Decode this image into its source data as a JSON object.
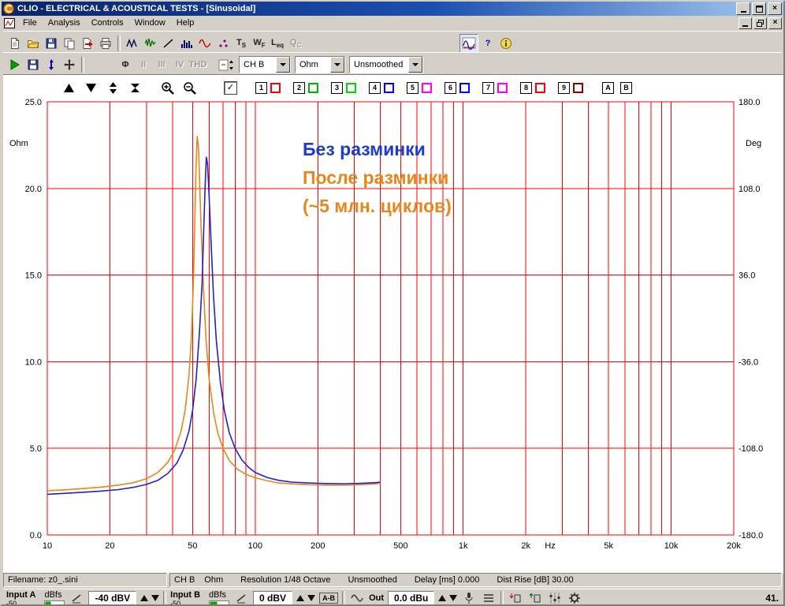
{
  "window": {
    "title": "CLIO - ELECTRICAL & ACOUSTICAL TESTS - [Sinusoidal]"
  },
  "menu": {
    "items": [
      "File",
      "Analysis",
      "Controls",
      "Window",
      "Help"
    ]
  },
  "toolbar_main": {
    "items": [
      {
        "name": "new-doc"
      },
      {
        "name": "open-folder"
      },
      {
        "name": "save"
      },
      {
        "name": "copy"
      },
      {
        "name": "export"
      },
      {
        "name": "print"
      },
      {
        "sep": true
      },
      {
        "name": "mls-signal"
      },
      {
        "name": "noise-signal"
      },
      {
        "name": "sweep-line"
      },
      {
        "name": "fft-bars"
      },
      {
        "name": "sine-wave"
      },
      {
        "name": "scatter"
      },
      {
        "name": "ts-parameters",
        "label": "TS",
        "sub": true
      },
      {
        "name": "waterfall",
        "label": "WF",
        "sub": true
      },
      {
        "name": "leq-analysis",
        "label": "Leq",
        "sub": true
      },
      {
        "name": "qc",
        "label": "QC",
        "sub": true,
        "disabled": true
      },
      {
        "gap": 195
      },
      {
        "name": "sinusoidal",
        "pressed": true
      },
      {
        "name": "help",
        "label": "?",
        "color": "#0000cc"
      },
      {
        "name": "about"
      }
    ]
  },
  "toolbar_tools": {
    "items": [
      {
        "name": "go"
      },
      {
        "name": "save-curve"
      },
      {
        "name": "autoscale"
      },
      {
        "name": "move"
      },
      {
        "sep": true
      },
      {
        "gap": 36
      },
      {
        "name": "phase",
        "label": "Φ"
      },
      {
        "name": "harmonic-2",
        "label": "II",
        "disabled": true
      },
      {
        "name": "harmonic-3",
        "label": "III",
        "disabled": true
      },
      {
        "name": "harmonic-4",
        "label": "IV",
        "disabled": true
      },
      {
        "name": "thd",
        "label": "THD",
        "disabled": true
      },
      {
        "gap": 12
      },
      {
        "name": "y-scale-spin"
      }
    ],
    "combos": [
      {
        "name": "channel",
        "value": "CH B",
        "width": 64
      },
      {
        "name": "unit",
        "value": "Ohm",
        "width": 62
      },
      {
        "name": "smoothing",
        "value": "Unsmoothed",
        "width": 92
      }
    ]
  },
  "chart_controls": {
    "nav_icons": [
      "up-triangle",
      "down-triangle",
      "updown-triangle",
      "hourglass"
    ],
    "zoom_icons": [
      "zoom-in",
      "zoom-out"
    ],
    "checkbox_checked": "✓",
    "curves": [
      {
        "label": "1",
        "color": "#ff0000"
      },
      {
        "label": "2",
        "color": "#00b400"
      },
      {
        "label": "3",
        "color": "#00d800"
      },
      {
        "label": "4",
        "color": "#0000ff"
      },
      {
        "label": "5",
        "color": "#ff00ff"
      },
      {
        "label": "6",
        "color": "#0000ff"
      },
      {
        "label": "7",
        "color": "#ff00ff"
      },
      {
        "label": "8",
        "color": "#ff0000"
      },
      {
        "label": "9",
        "color": "#900000"
      }
    ],
    "overlays": [
      "A",
      "B"
    ]
  },
  "chart_data": {
    "type": "line",
    "x_scale": "log",
    "xlim": [
      10,
      20000
    ],
    "ylim_left": [
      0,
      25
    ],
    "ylim_right": [
      -180,
      180
    ],
    "xlabel": "Hz",
    "ylabel_left": "Ohm",
    "ylabel_right": "Deg",
    "grid": true,
    "grid_color": "#ff0000",
    "x_ticks": [
      {
        "v": 10,
        "l": "10"
      },
      {
        "v": 20,
        "l": "20"
      },
      {
        "v": 50,
        "l": "50"
      },
      {
        "v": 100,
        "l": "100"
      },
      {
        "v": 200,
        "l": "200"
      },
      {
        "v": 500,
        "l": "500"
      },
      {
        "v": 1000,
        "l": "1k"
      },
      {
        "v": 2000,
        "l": "2k"
      },
      {
        "v": 5000,
        "l": "5k"
      },
      {
        "v": 10000,
        "l": "10k"
      },
      {
        "v": 20000,
        "l": "20k"
      }
    ],
    "y_ticks_left": [
      {
        "v": 25,
        "l": "25.0"
      },
      {
        "v": 20,
        "l": "20.0"
      },
      {
        "v": 15,
        "l": "15.0"
      },
      {
        "v": 10,
        "l": "10.0"
      },
      {
        "v": 5,
        "l": "5.0"
      },
      {
        "v": 0,
        "l": "0.0"
      }
    ],
    "y_ticks_right": [
      {
        "v": 25,
        "l": "180.0"
      },
      {
        "v": 20,
        "l": "108.0"
      },
      {
        "v": 15,
        "l": "36.0"
      },
      {
        "v": 10,
        "l": "-36.0"
      },
      {
        "v": 5,
        "l": "-108.0"
      },
      {
        "v": 0,
        "l": "-180.0"
      }
    ],
    "series": [
      {
        "name": "После разминки (~5 млн. циклов)",
        "color": "#e8861c",
        "points": [
          [
            10,
            2.55
          ],
          [
            12,
            2.6
          ],
          [
            15,
            2.68
          ],
          [
            18,
            2.76
          ],
          [
            22,
            2.88
          ],
          [
            26,
            3.02
          ],
          [
            30,
            3.25
          ],
          [
            34,
            3.6
          ],
          [
            38,
            4.2
          ],
          [
            41,
            4.9
          ],
          [
            44,
            6.0
          ],
          [
            46,
            7.2
          ],
          [
            48,
            9.2
          ],
          [
            49.5,
            11.8
          ],
          [
            50.5,
            15.0
          ],
          [
            51.3,
            18.5
          ],
          [
            52,
            21.5
          ],
          [
            52.6,
            23.0
          ],
          [
            53.3,
            22.4
          ],
          [
            54,
            20.5
          ],
          [
            55,
            17.5
          ],
          [
            56.5,
            14.0
          ],
          [
            58,
            11.3
          ],
          [
            60,
            9.0
          ],
          [
            63,
            7.1
          ],
          [
            66,
            5.9
          ],
          [
            70,
            5.0
          ],
          [
            75,
            4.3
          ],
          [
            82,
            3.8
          ],
          [
            90,
            3.5
          ],
          [
            100,
            3.3
          ],
          [
            115,
            3.12
          ],
          [
            130,
            3.0
          ],
          [
            150,
            2.95
          ],
          [
            180,
            2.9
          ],
          [
            220,
            2.88
          ],
          [
            270,
            2.88
          ],
          [
            320,
            2.9
          ],
          [
            380,
            2.95
          ],
          [
            400,
            3.0
          ]
        ]
      },
      {
        "name": "Без разминки",
        "color": "#2121cc",
        "points": [
          [
            10,
            2.35
          ],
          [
            12,
            2.4
          ],
          [
            15,
            2.47
          ],
          [
            18,
            2.53
          ],
          [
            22,
            2.62
          ],
          [
            26,
            2.75
          ],
          [
            30,
            2.92
          ],
          [
            34,
            3.15
          ],
          [
            38,
            3.55
          ],
          [
            42,
            4.15
          ],
          [
            45,
            4.9
          ],
          [
            48,
            6.0
          ],
          [
            50,
            7.2
          ],
          [
            52,
            9.0
          ],
          [
            54,
            11.8
          ],
          [
            55.5,
            14.5
          ],
          [
            56.5,
            17.5
          ],
          [
            57.5,
            20.3
          ],
          [
            58.2,
            21.8
          ],
          [
            59,
            21.4
          ],
          [
            60,
            19.6
          ],
          [
            61.5,
            16.5
          ],
          [
            63,
            13.8
          ],
          [
            65,
            11.2
          ],
          [
            68,
            8.8
          ],
          [
            71,
            7.2
          ],
          [
            75,
            5.9
          ],
          [
            80,
            5.0
          ],
          [
            86,
            4.35
          ],
          [
            93,
            3.9
          ],
          [
            100,
            3.6
          ],
          [
            115,
            3.3
          ],
          [
            130,
            3.15
          ],
          [
            150,
            3.05
          ],
          [
            180,
            3.0
          ],
          [
            220,
            2.97
          ],
          [
            270,
            2.96
          ],
          [
            320,
            2.98
          ],
          [
            380,
            3.02
          ],
          [
            400,
            3.05
          ]
        ]
      }
    ]
  },
  "annotations": [
    {
      "text": "Без разминки",
      "color": "#1b3bd2"
    },
    {
      "text": "После разминки",
      "color": "#e8861c"
    },
    {
      "text": "(~5 млн. циклов)",
      "color": "#e8861c"
    }
  ],
  "statusbar": {
    "filename": "Filename: z0_.sini",
    "channel": "CH B",
    "unit": "Ohm",
    "resolution": "Resolution 1/48 Octave",
    "smoothing": "Unsmoothed",
    "delay": "Delay [ms] 0.000",
    "dist_rise": "Dist Rise [dB] 30.00"
  },
  "bottom_bar": {
    "input_a": {
      "label": "Input A",
      "unit": "dBfs",
      "min": "-50",
      "value": "-40 dBV"
    },
    "input_b": {
      "label": "Input B",
      "unit": "dBfs",
      "min": "-50",
      "value": "0 dBV"
    },
    "ab_label": "A-B",
    "out": {
      "label": "Out",
      "value": "0.0 dBu"
    },
    "sample_rate": "41."
  }
}
